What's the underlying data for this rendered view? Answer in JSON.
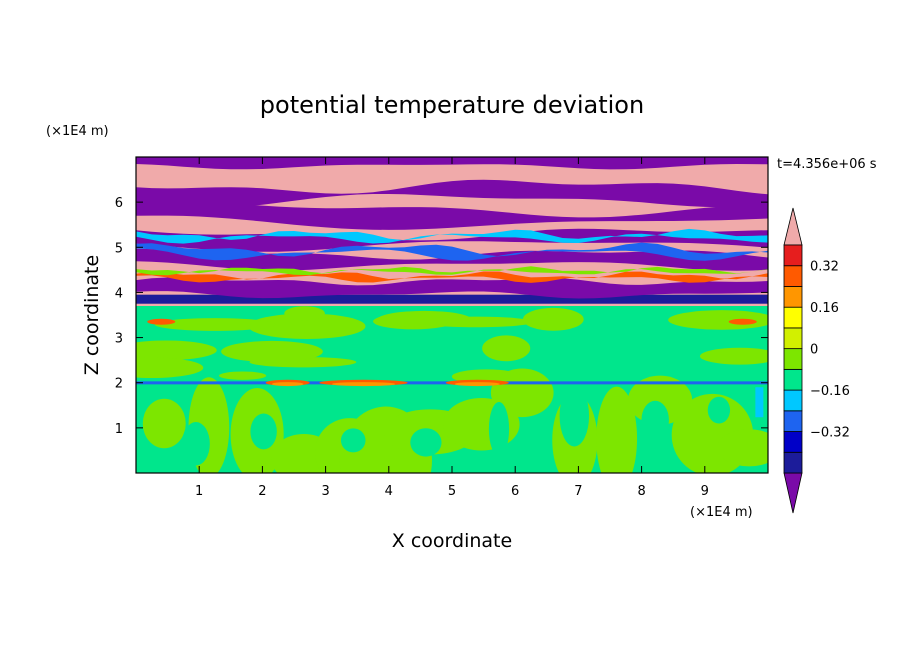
{
  "chart_data": {
    "type": "heatmap",
    "title": "potential temperature deviation",
    "xlabel": "X coordinate",
    "ylabel": "Z coordinate",
    "x_unit": "(×1E4 m)",
    "y_unit": "(×1E4 m)",
    "time_label": "t=4.356e+06 s",
    "xlim": [
      0,
      10
    ],
    "ylim": [
      0,
      7
    ],
    "x_ticks": [
      1,
      2,
      3,
      4,
      5,
      6,
      7,
      8,
      9
    ],
    "y_ticks": [
      1,
      2,
      3,
      4,
      5,
      6
    ],
    "levels": [
      -0.48,
      -0.4,
      -0.32,
      -0.24,
      -0.16,
      -0.08,
      0,
      0.08,
      0.16,
      0.24,
      0.32,
      0.4,
      0.48
    ],
    "colorbar_labels": [
      {
        "value": 0.32,
        "text": "0.32"
      },
      {
        "value": 0.16,
        "text": "0.16"
      },
      {
        "value": 0,
        "text": "0"
      },
      {
        "value": -0.16,
        "text": "−0.16"
      },
      {
        "value": -0.32,
        "text": "−0.32"
      }
    ],
    "colors": [
      "#7a0aa8",
      "#1c1c9a",
      "#0000c8",
      "#1e64f0",
      "#00c8ff",
      "#00e68c",
      "#7de600",
      "#d2f000",
      "#ffff00",
      "#ff9600",
      "#ff5a00",
      "#e61e1e",
      "#f0aaaa"
    ],
    "bands": [
      {
        "z_bottom": 0.0,
        "z_top": 1.95,
        "pattern": "green-lightgreen mix"
      },
      {
        "z_bottom": 1.95,
        "z_top": 2.05,
        "pattern": "blue/cyan line with red patches"
      },
      {
        "z_bottom": 2.05,
        "z_top": 3.7,
        "pattern": "green-lightgreen mix"
      },
      {
        "z_bottom": 3.7,
        "z_top": 4.0,
        "pattern": "dark blue / purple"
      },
      {
        "z_bottom": 4.0,
        "z_top": 7.0,
        "pattern": "alternating pink and purple layers"
      }
    ],
    "grid": false,
    "legend": "colorbar right"
  }
}
